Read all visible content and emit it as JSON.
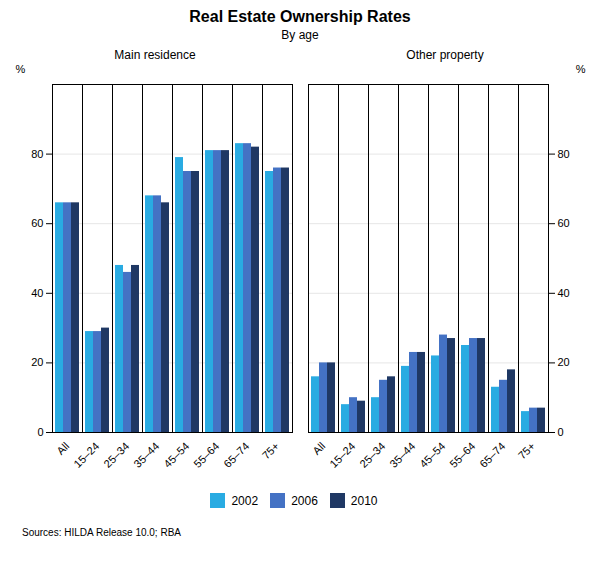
{
  "title": "Real Estate Ownership Rates",
  "subtitle": "By age",
  "caption": "Sources: HILDA Release 10.0; RBA",
  "chart_data": [
    {
      "type": "bar",
      "title": "Main residence",
      "ylabel": "%",
      "categories": [
        "All",
        "15–24",
        "25–34",
        "35–44",
        "45–54",
        "55–64",
        "65–74",
        "75+"
      ],
      "series": [
        {
          "name": "2002",
          "color": "#29ABE2",
          "values": [
            66,
            29,
            48,
            68,
            79,
            81,
            83,
            75
          ]
        },
        {
          "name": "2006",
          "color": "#4472C4",
          "values": [
            66,
            29,
            46,
            68,
            75,
            81,
            83,
            76
          ]
        },
        {
          "name": "2010",
          "color": "#1F3864",
          "values": [
            66,
            30,
            48,
            66,
            75,
            81,
            82,
            76
          ]
        }
      ],
      "ylim": [
        0,
        100
      ],
      "yticks": [
        0,
        20,
        40,
        60,
        80
      ],
      "grid": true,
      "legend": "bottom"
    },
    {
      "type": "bar",
      "title": "Other property",
      "ylabel": "%",
      "categories": [
        "All",
        "15–24",
        "25–34",
        "35–44",
        "45–54",
        "55–64",
        "65–74",
        "75+"
      ],
      "series": [
        {
          "name": "2002",
          "color": "#29ABE2",
          "values": [
            16,
            8,
            10,
            19,
            22,
            25,
            13,
            6
          ]
        },
        {
          "name": "2006",
          "color": "#4472C4",
          "values": [
            20,
            10,
            15,
            23,
            28,
            27,
            15,
            7
          ]
        },
        {
          "name": "2010",
          "color": "#1F3864",
          "values": [
            20,
            9,
            16,
            23,
            27,
            27,
            18,
            7
          ]
        }
      ],
      "ylim": [
        0,
        100
      ],
      "yticks": [
        0,
        20,
        40,
        60,
        80
      ],
      "grid": true,
      "legend": "bottom"
    }
  ]
}
